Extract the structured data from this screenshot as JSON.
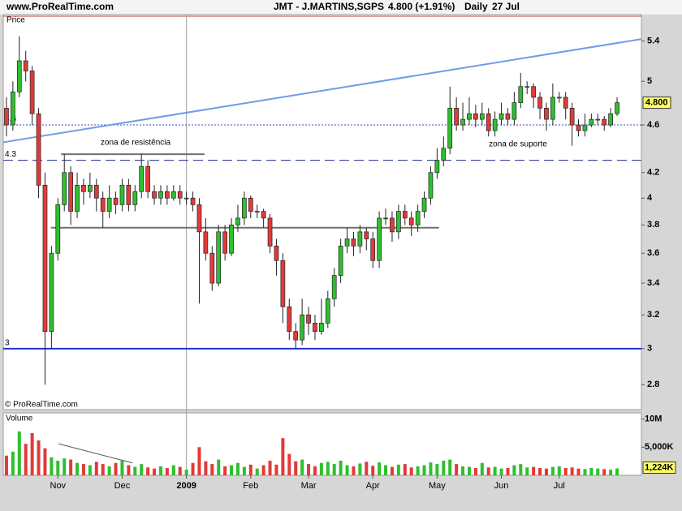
{
  "header": {
    "site": "www.ProRealTime.com",
    "instrument": "JMT - J.MARTINS,SGPS",
    "last": "4.800 (+1.91%)",
    "period": "Daily",
    "date": "27 Jul"
  },
  "copyright": "© ProRealTime.com",
  "chart_data": [
    {
      "type": "candlestick",
      "title": "Price",
      "categories": [
        null,
        null,
        null,
        null,
        null,
        null,
        null,
        null,
        "Nov",
        null,
        null,
        null,
        null,
        null,
        null,
        null,
        null,
        null,
        "Dec",
        null,
        null,
        null,
        null,
        null,
        null,
        null,
        null,
        null,
        "2009",
        null,
        null,
        null,
        null,
        null,
        null,
        null,
        null,
        null,
        "Feb",
        null,
        null,
        null,
        null,
        null,
        null,
        null,
        null,
        "Mar",
        null,
        null,
        null,
        null,
        null,
        null,
        null,
        null,
        null,
        "Apr",
        null,
        null,
        null,
        null,
        null,
        null,
        null,
        null,
        null,
        "May",
        null,
        null,
        null,
        null,
        null,
        null,
        null,
        null,
        null,
        "Jun",
        null,
        null,
        null,
        null,
        null,
        null,
        null,
        null,
        "Jul",
        null,
        null,
        null,
        null,
        null,
        null,
        null,
        null,
        null
      ],
      "open": [
        4.75,
        4.6,
        4.9,
        5.2,
        5.1,
        4.7,
        4.1,
        3.1,
        3.6,
        3.95,
        4.2,
        3.9,
        4.1,
        4.05,
        4.1,
        4.0,
        3.9,
        4.0,
        3.95,
        4.1,
        3.95,
        4.05,
        4.25,
        4.05,
        4.0,
        4.05,
        4.0,
        4.05,
        4.0,
        4.0,
        3.95,
        3.75,
        3.6,
        3.4,
        3.75,
        3.6,
        3.8,
        3.85,
        4.0,
        3.9,
        3.9,
        3.85,
        3.65,
        3.55,
        3.25,
        3.1,
        3.05,
        3.2,
        3.15,
        3.1,
        3.15,
        3.3,
        3.45,
        3.65,
        3.7,
        3.65,
        3.75,
        3.7,
        3.55,
        3.85,
        3.85,
        3.75,
        3.9,
        3.85,
        3.8,
        3.9,
        4.0,
        4.2,
        4.3,
        4.4,
        4.75,
        4.6,
        4.65,
        4.7,
        4.65,
        4.7,
        4.55,
        4.65,
        4.7,
        4.65,
        4.8,
        4.95,
        4.95,
        4.85,
        4.75,
        4.65,
        4.85,
        4.85,
        4.75,
        4.6,
        4.55,
        4.6,
        4.65,
        4.65,
        4.6,
        4.7
      ],
      "high": [
        4.85,
        5.0,
        5.45,
        5.3,
        5.15,
        4.75,
        4.2,
        3.65,
        4.0,
        4.35,
        4.25,
        4.2,
        4.15,
        4.2,
        4.15,
        4.05,
        4.1,
        4.05,
        4.15,
        4.15,
        4.1,
        4.35,
        4.3,
        4.1,
        4.1,
        4.1,
        4.1,
        4.1,
        4.05,
        4.05,
        4.0,
        3.85,
        3.65,
        3.8,
        3.8,
        3.85,
        3.95,
        4.05,
        4.02,
        3.95,
        3.92,
        3.88,
        3.7,
        3.6,
        3.3,
        3.15,
        3.3,
        3.25,
        3.2,
        3.3,
        3.35,
        3.5,
        3.7,
        3.78,
        3.75,
        3.8,
        3.78,
        3.75,
        3.9,
        3.92,
        3.9,
        3.95,
        3.95,
        3.9,
        3.95,
        4.05,
        4.25,
        4.4,
        4.5,
        4.95,
        4.85,
        4.8,
        4.85,
        4.78,
        4.8,
        4.75,
        4.72,
        4.8,
        4.75,
        4.9,
        5.08,
        5.0,
        4.98,
        4.9,
        4.8,
        4.98,
        4.9,
        4.9,
        4.8,
        4.65,
        4.7,
        4.7,
        4.7,
        4.68,
        4.75,
        4.85
      ],
      "low": [
        4.5,
        4.55,
        4.85,
        5.0,
        4.6,
        4.0,
        2.8,
        3.0,
        3.55,
        3.9,
        3.8,
        3.85,
        3.95,
        4.0,
        3.9,
        3.78,
        3.85,
        3.88,
        3.9,
        3.9,
        3.9,
        4.0,
        4.0,
        3.95,
        3.95,
        3.95,
        3.98,
        3.95,
        3.95,
        3.9,
        3.27,
        3.55,
        3.35,
        3.38,
        3.55,
        3.58,
        3.75,
        3.8,
        3.85,
        3.85,
        3.78,
        3.6,
        3.45,
        3.15,
        3.05,
        3.0,
        3.02,
        3.08,
        3.05,
        3.08,
        3.12,
        3.25,
        3.4,
        3.6,
        3.58,
        3.6,
        3.62,
        3.5,
        3.5,
        3.8,
        3.68,
        3.7,
        3.8,
        3.72,
        3.75,
        3.85,
        3.95,
        4.15,
        4.25,
        4.35,
        4.55,
        4.55,
        4.6,
        4.58,
        4.6,
        4.5,
        4.5,
        4.6,
        4.6,
        4.6,
        4.75,
        4.88,
        4.75,
        4.65,
        4.55,
        4.6,
        4.8,
        4.65,
        4.42,
        4.5,
        4.5,
        4.58,
        4.6,
        4.55,
        4.58,
        4.68
      ],
      "close": [
        4.6,
        4.9,
        5.2,
        5.1,
        4.7,
        4.1,
        3.1,
        3.6,
        3.95,
        4.2,
        3.9,
        4.1,
        4.05,
        4.1,
        4.0,
        3.9,
        4.0,
        3.95,
        4.1,
        3.95,
        4.05,
        4.25,
        4.05,
        4.0,
        4.05,
        4.0,
        4.05,
        4.0,
        4.0,
        3.95,
        3.75,
        3.6,
        3.4,
        3.75,
        3.6,
        3.8,
        3.85,
        4.0,
        3.9,
        3.9,
        3.85,
        3.65,
        3.55,
        3.25,
        3.1,
        3.05,
        3.2,
        3.15,
        3.1,
        3.15,
        3.3,
        3.45,
        3.65,
        3.7,
        3.65,
        3.75,
        3.7,
        3.55,
        3.85,
        3.85,
        3.75,
        3.9,
        3.85,
        3.8,
        3.9,
        4.0,
        4.2,
        4.3,
        4.4,
        4.75,
        4.6,
        4.65,
        4.7,
        4.65,
        4.7,
        4.55,
        4.65,
        4.7,
        4.65,
        4.8,
        4.95,
        4.95,
        4.85,
        4.75,
        4.65,
        4.85,
        4.85,
        4.75,
        4.6,
        4.55,
        4.6,
        4.65,
        4.65,
        4.6,
        4.7,
        4.8
      ],
      "value_labels": [
        null,
        null,
        null,
        null,
        null,
        null,
        null,
        null,
        null,
        null,
        null,
        null,
        null,
        null,
        null,
        null,
        null,
        null,
        null,
        null,
        null,
        null,
        null,
        null,
        null,
        null,
        null,
        null,
        null,
        null,
        null,
        null,
        null,
        null,
        null,
        null,
        null,
        null,
        null,
        null,
        null,
        null,
        null,
        null,
        null,
        null,
        null,
        null,
        null,
        null,
        null,
        null,
        null,
        null,
        null,
        null,
        null,
        null,
        null,
        null,
        null,
        null,
        null,
        null,
        null,
        null,
        null,
        null,
        null,
        null,
        null,
        null,
        null,
        null,
        null,
        null,
        null,
        null,
        null,
        null,
        null,
        null,
        null,
        null,
        null,
        null,
        null,
        null,
        null,
        null,
        null,
        null,
        null,
        null,
        null,
        "4.800"
      ],
      "up_color": "#2fbf2f",
      "down_color": "#e23a3a",
      "log_scale": true,
      "ylim": [
        2.67,
        5.68
      ],
      "yticks": [
        2.8,
        3,
        3.2,
        3.4,
        3.6,
        3.8,
        4,
        4.2,
        4.6,
        5,
        5.4
      ],
      "lines": [
        {
          "value": 4.6,
          "color": "#3a47c8",
          "style": "dotted"
        },
        {
          "value": 4.3,
          "color": "#1f2a8a",
          "style": "dashed"
        },
        {
          "value": 3,
          "color": "#2233cc",
          "style": "solid"
        }
      ],
      "trendline": {
        "x": [
          -0.5,
          98.75
        ],
        "values": [
          4.45,
          5.42
        ],
        "color": "#6f9be8"
      },
      "segments": [
        {
          "x": [
            8.5,
            30.8
          ],
          "value": 4.35,
          "color": "#707070"
        },
        {
          "x": [
            6.9,
            67.3
          ],
          "value": 3.78,
          "color": "#707070"
        }
      ],
      "annotations": [
        {
          "text": "zona de resistência",
          "color": "#e8652a"
        },
        {
          "text": "zona de suporte",
          "color": "#4a7fd4"
        }
      ]
    },
    {
      "type": "bar",
      "title": "Volume",
      "values": [
        3500000,
        4200000,
        7800000,
        5600000,
        7500000,
        6200000,
        4800000,
        3200000,
        2600000,
        3000000,
        2800000,
        2200000,
        2000000,
        1800000,
        2400000,
        2000000,
        1600000,
        2200000,
        2600000,
        1800000,
        1500000,
        2000000,
        1400000,
        1200000,
        1600000,
        1300000,
        1800000,
        1500000,
        1000000,
        2200000,
        5000000,
        2500000,
        2000000,
        2800000,
        1600000,
        1800000,
        2200000,
        1500000,
        1900000,
        1200000,
        1800000,
        2600000,
        1900000,
        6600000,
        3800000,
        2500000,
        2800000,
        2000000,
        1600000,
        2200000,
        2400000,
        2000000,
        2600000,
        1800000,
        1600000,
        2100000,
        2400000,
        1700000,
        2300000,
        1800000,
        1500000,
        1900000,
        2000000,
        1400000,
        1600000,
        1800000,
        2300000,
        2000000,
        2600000,
        2800000,
        2000000,
        1600000,
        1500000,
        1300000,
        2200000,
        1400000,
        1500000,
        1200000,
        1300000,
        1800000,
        2000000,
        1400000,
        1500000,
        1300000,
        1200000,
        1500000,
        1600000,
        1300000,
        1400000,
        1200000,
        1100000,
        1300000,
        1200000,
        1100000,
        1000000,
        1224000
      ],
      "value_labels": [
        null,
        null,
        null,
        null,
        null,
        null,
        null,
        null,
        null,
        null,
        null,
        null,
        null,
        null,
        null,
        null,
        null,
        null,
        null,
        null,
        null,
        null,
        null,
        null,
        null,
        null,
        null,
        null,
        null,
        null,
        null,
        null,
        null,
        null,
        null,
        null,
        null,
        null,
        null,
        null,
        null,
        null,
        null,
        null,
        null,
        null,
        null,
        null,
        null,
        null,
        null,
        null,
        null,
        null,
        null,
        null,
        null,
        null,
        null,
        null,
        null,
        null,
        null,
        null,
        null,
        null,
        null,
        null,
        null,
        null,
        null,
        null,
        null,
        null,
        null,
        null,
        null,
        null,
        null,
        null,
        null,
        null,
        null,
        null,
        null,
        null,
        null,
        null,
        null,
        null,
        null,
        null,
        null,
        null,
        null,
        "1,224K"
      ],
      "title_color": "#2e9b2e",
      "ylim": [
        0,
        11100000
      ],
      "yticks": [
        {
          "value": 10000000,
          "label": "10M"
        },
        {
          "value": 5000000,
          "label": "5,000K"
        }
      ],
      "trendline": {
        "x": [
          8.1,
          19.6
        ],
        "values": [
          5600000,
          2200000
        ],
        "color": "#555555"
      }
    }
  ]
}
